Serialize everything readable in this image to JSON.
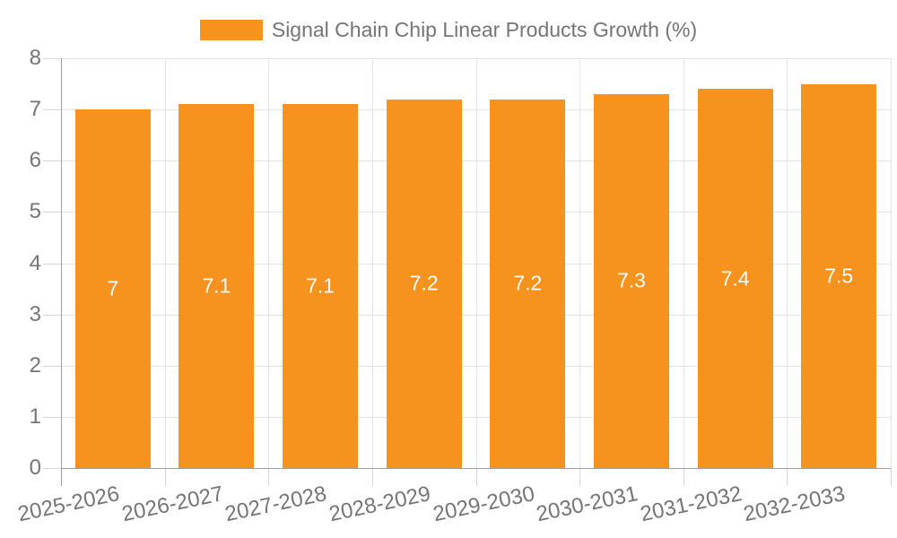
{
  "chart_data": {
    "type": "bar",
    "title": "Signal Chain Chip Linear Products Growth (%)",
    "legend_position": "top",
    "legend_entries": [
      "Signal Chain Chip Linear Products Growth (%)"
    ],
    "categories": [
      "2025-2026",
      "2026-2027",
      "2027-2028",
      "2028-2029",
      "2029-2030",
      "2030-2031",
      "2031-2032",
      "2032-2033"
    ],
    "values": [
      7,
      7.1,
      7.1,
      7.2,
      7.2,
      7.3,
      7.4,
      7.5
    ],
    "bar_value_labels": [
      "7",
      "7.1",
      "7.1",
      "7.2",
      "7.2",
      "7.3",
      "7.4",
      "7.5"
    ],
    "xlabel": "",
    "ylabel": "",
    "ylim": [
      0,
      8
    ],
    "yticks": [
      0,
      1,
      2,
      3,
      4,
      5,
      6,
      7,
      8
    ],
    "grid": true,
    "x_label_rotation_deg": -12,
    "colors": {
      "bar": "#F6921E",
      "bar_value_text": "#FFFFFF",
      "tick_label_text": "#757575",
      "legend_text": "#757575",
      "axis_line": "#9E9E9E",
      "gridline": "#E3E3E3",
      "tick_mark": "#D6D6D6",
      "background": "#FFFFFF"
    }
  }
}
